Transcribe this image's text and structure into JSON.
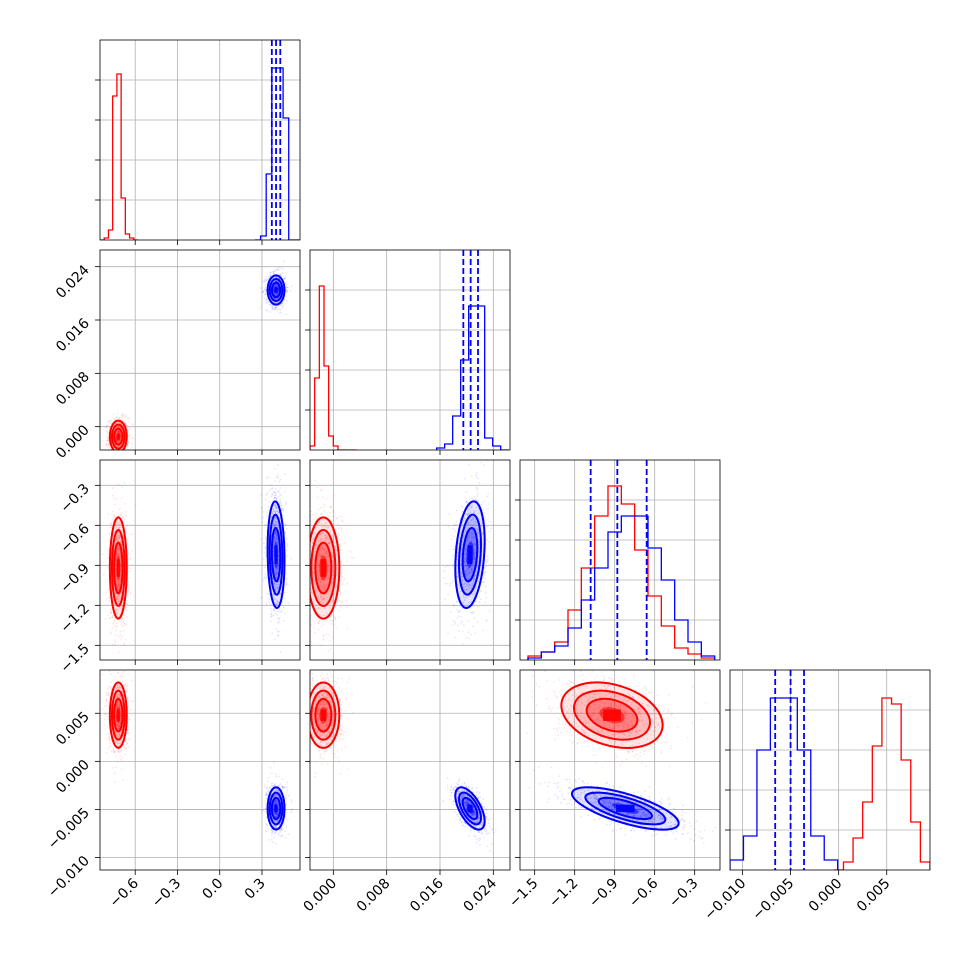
{
  "chart_data": {
    "type": "corner",
    "n_parameters": 4,
    "colors": {
      "series_a": "#ff0000",
      "series_b": "#0000ff"
    },
    "grid": true,
    "axes": [
      {
        "range": [
          -0.85,
          0.57
        ],
        "ticks": [
          -0.6,
          -0.3,
          0.0,
          0.3
        ],
        "tick_labels": [
          "−0.6",
          "−0.3",
          "0.0",
          "0.3"
        ]
      },
      {
        "range": [
          -0.0035,
          0.0265
        ],
        "ticks": [
          0.0,
          0.008,
          0.016,
          0.024
        ],
        "tick_labels": [
          "0.000",
          "0.008",
          "0.016",
          "0.024"
        ]
      },
      {
        "range": [
          -1.61,
          -0.11
        ],
        "ticks": [
          -1.5,
          -1.2,
          -0.9,
          -0.6,
          -0.3
        ],
        "tick_labels": [
          "−1.5",
          "−1.2",
          "−0.9",
          "−0.6",
          "−0.3"
        ]
      },
      {
        "range": [
          -0.0113,
          0.0095
        ],
        "ticks": [
          -0.01,
          -0.005,
          0.0,
          0.005
        ],
        "tick_labels": [
          "−0.010",
          "−0.005",
          "0.000",
          "0.005"
        ]
      }
    ],
    "series": [
      {
        "color": "#ff0000",
        "mean": [
          -0.72,
          -0.0015,
          -0.92,
          0.0048
        ],
        "std": [
          0.03,
          0.0012,
          0.19,
          0.0017
        ],
        "corr": [
          [
            0,
            1,
            0.0
          ],
          [
            0,
            2,
            0.0
          ],
          [
            0,
            3,
            0.0
          ],
          [
            1,
            2,
            0.0
          ],
          [
            1,
            3,
            0.0
          ],
          [
            2,
            3,
            -0.3
          ]
        ],
        "histograms": [
          {
            "bins": [
              -0.85,
              -0.82,
              -0.79,
              -0.76,
              -0.73,
              -0.7,
              -0.67,
              -0.64,
              -0.61,
              -0.58
            ],
            "counts": [
              0.0,
              0.01,
              0.05,
              0.72,
              0.83,
              0.21,
              0.03,
              0.01,
              0.0
            ]
          },
          {
            "bins": [
              -0.0035,
              -0.0028,
              -0.0021,
              -0.0014,
              -0.0007,
              0.0,
              0.0007,
              0.0014,
              0.0021,
              0.0028,
              0.0035
            ],
            "counts": [
              0.02,
              0.36,
              0.82,
              0.42,
              0.07,
              0.02,
              0.0,
              0.0,
              0.0,
              0.0
            ]
          },
          {
            "bins": [
              -1.55,
              -1.45,
              -1.35,
              -1.25,
              -1.15,
              -1.05,
              -0.95,
              -0.85,
              -0.75,
              -0.65,
              -0.55,
              -0.45,
              -0.35,
              -0.25,
              -0.15
            ],
            "counts": [
              0.02,
              0.04,
              0.09,
              0.25,
              0.46,
              0.72,
              0.87,
              0.78,
              0.55,
              0.32,
              0.17,
              0.06,
              0.03,
              0.01
            ]
          },
          {
            "bins": [
              -0.0005,
              0.0005,
              0.0015,
              0.0025,
              0.0035,
              0.0045,
              0.0055,
              0.0065,
              0.0075,
              0.0085,
              0.0095
            ],
            "counts": [
              0.0,
              0.04,
              0.16,
              0.34,
              0.62,
              0.86,
              0.83,
              0.55,
              0.24,
              0.04
            ]
          }
        ]
      },
      {
        "color": "#0000ff",
        "mean": [
          0.4,
          0.0205,
          -0.82,
          -0.0049
        ],
        "std": [
          0.03,
          0.0011,
          0.2,
          0.0011
        ],
        "quantiles": [
          [
            0.37,
            0.4,
            0.43
          ],
          [
            0.0195,
            0.0206,
            0.0217
          ],
          [
            -1.08,
            -0.88,
            -0.66
          ],
          [
            -0.0066,
            -0.005,
            -0.0036
          ]
        ],
        "corr": [
          [
            0,
            1,
            0.0
          ],
          [
            0,
            2,
            -0.1
          ],
          [
            0,
            3,
            0.0
          ],
          [
            1,
            2,
            0.25
          ],
          [
            1,
            3,
            -0.6
          ],
          [
            2,
            3,
            -0.7
          ]
        ],
        "histograms": [
          {
            "bins": [
              0.25,
              0.29,
              0.33,
              0.37,
              0.41,
              0.45,
              0.49,
              0.53,
              0.57
            ],
            "counts": [
              0.0,
              0.02,
              0.33,
              0.86,
              0.86,
              0.61,
              0.0,
              0.0
            ]
          },
          {
            "bins": [
              0.0155,
              0.0167,
              0.0179,
              0.0191,
              0.0203,
              0.0215,
              0.0227,
              0.0239,
              0.0251,
              0.0263
            ],
            "counts": [
              0.01,
              0.03,
              0.17,
              0.45,
              0.72,
              0.72,
              0.06,
              0.02,
              0.0
            ]
          },
          {
            "bins": [
              -1.55,
              -1.45,
              -1.35,
              -1.25,
              -1.15,
              -1.05,
              -0.95,
              -0.85,
              -0.75,
              -0.65,
              -0.55,
              -0.45,
              -0.35,
              -0.25,
              -0.15
            ],
            "counts": [
              0.01,
              0.04,
              0.07,
              0.16,
              0.3,
              0.46,
              0.64,
              0.72,
              0.72,
              0.56,
              0.4,
              0.2,
              0.09,
              0.02
            ]
          },
          {
            "bins": [
              -0.0113,
              -0.0099,
              -0.0085,
              -0.0071,
              -0.0057,
              -0.0043,
              -0.0029,
              -0.0015,
              -0.0001
            ],
            "counts": [
              0.05,
              0.17,
              0.6,
              0.86,
              0.86,
              0.6,
              0.17,
              0.05
            ]
          }
        ]
      }
    ]
  }
}
